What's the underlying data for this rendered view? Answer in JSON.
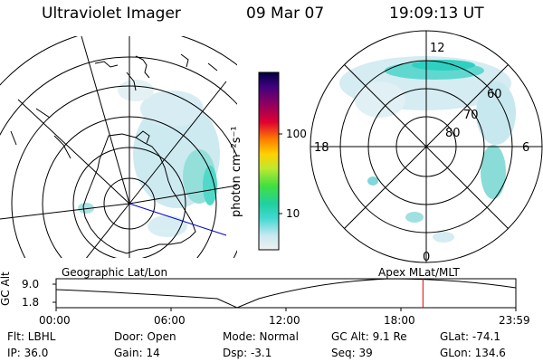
{
  "header": {
    "instrument": "Ultraviolet Imager",
    "date": "09 Mar 07",
    "time": "19:09:13 UT"
  },
  "colorbar": {
    "unit_label": "photon cm⁻²s⁻¹",
    "tick_100": "100",
    "tick_10": "10"
  },
  "polar_plot": {
    "lat_labels": [
      "60",
      "70",
      "80"
    ],
    "mlt_labels": [
      "12",
      "18",
      "6",
      "0"
    ]
  },
  "orbit_panel": {
    "ylabel": "GC Alt",
    "ytick_top": "9.0",
    "ytick_bottom": "1.8",
    "left_title": "Geographic Lat/Lon",
    "right_title": "Apex  MLat/MLT",
    "xticks": [
      "00:00",
      "06:00",
      "12:00",
      "18:00",
      "23:59"
    ],
    "marker_time_hours": 19.15,
    "marker_color": "#e00000"
  },
  "info": {
    "filter": "Flt: LBHL",
    "ip": "IP: 36.0",
    "door": "Door: Open",
    "gain": "Gain: 14",
    "mode": "Mode: Normal",
    "dsp": "Dsp:    -3.1",
    "gc_alt": "GC Alt: 9.1 Re",
    "seq": "Seq: 39",
    "glat": "GLat: -74.1",
    "glon": "GLon: 134.6"
  },
  "colors": {
    "aurora_light": "#c8e8f0",
    "aurora_mid": "#80dcd8",
    "aurora_strong": "#30d0c0",
    "track_line": "#0000cc"
  }
}
